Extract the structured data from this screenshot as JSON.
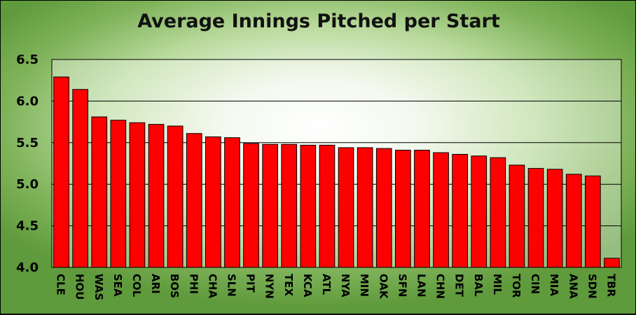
{
  "chart_data": {
    "type": "bar",
    "title": "Average Innings Pitched per Start",
    "xlabel": "",
    "ylabel": "",
    "ylim": [
      4.0,
      6.5
    ],
    "yticks": [
      "4.0",
      "4.5",
      "5.0",
      "5.5",
      "6.0",
      "6.5"
    ],
    "grid": true,
    "legend": "none",
    "categories": [
      "CLE",
      "HOU",
      "WAS",
      "SEA",
      "COL",
      "ARI",
      "BOS",
      "PHI",
      "CHA",
      "SLN",
      "PIT",
      "NYN",
      "TEX",
      "KCA",
      "ATL",
      "NYA",
      "MIN",
      "OAK",
      "SFN",
      "LAN",
      "CHN",
      "DET",
      "BAL",
      "MIL",
      "TOR",
      "CIN",
      "MIA",
      "ANA",
      "SDN",
      "TBR"
    ],
    "values": [
      6.29,
      6.14,
      5.81,
      5.77,
      5.74,
      5.72,
      5.7,
      5.61,
      5.57,
      5.56,
      5.49,
      5.48,
      5.48,
      5.47,
      5.47,
      5.44,
      5.44,
      5.43,
      5.41,
      5.41,
      5.38,
      5.36,
      5.34,
      5.32,
      5.23,
      5.19,
      5.18,
      5.12,
      5.1,
      4.11
    ],
    "colors": {
      "bar": "#ff0000",
      "bar_edge": "#000000",
      "plot_bg": "#eef6e6",
      "grid": "#000000"
    }
  }
}
